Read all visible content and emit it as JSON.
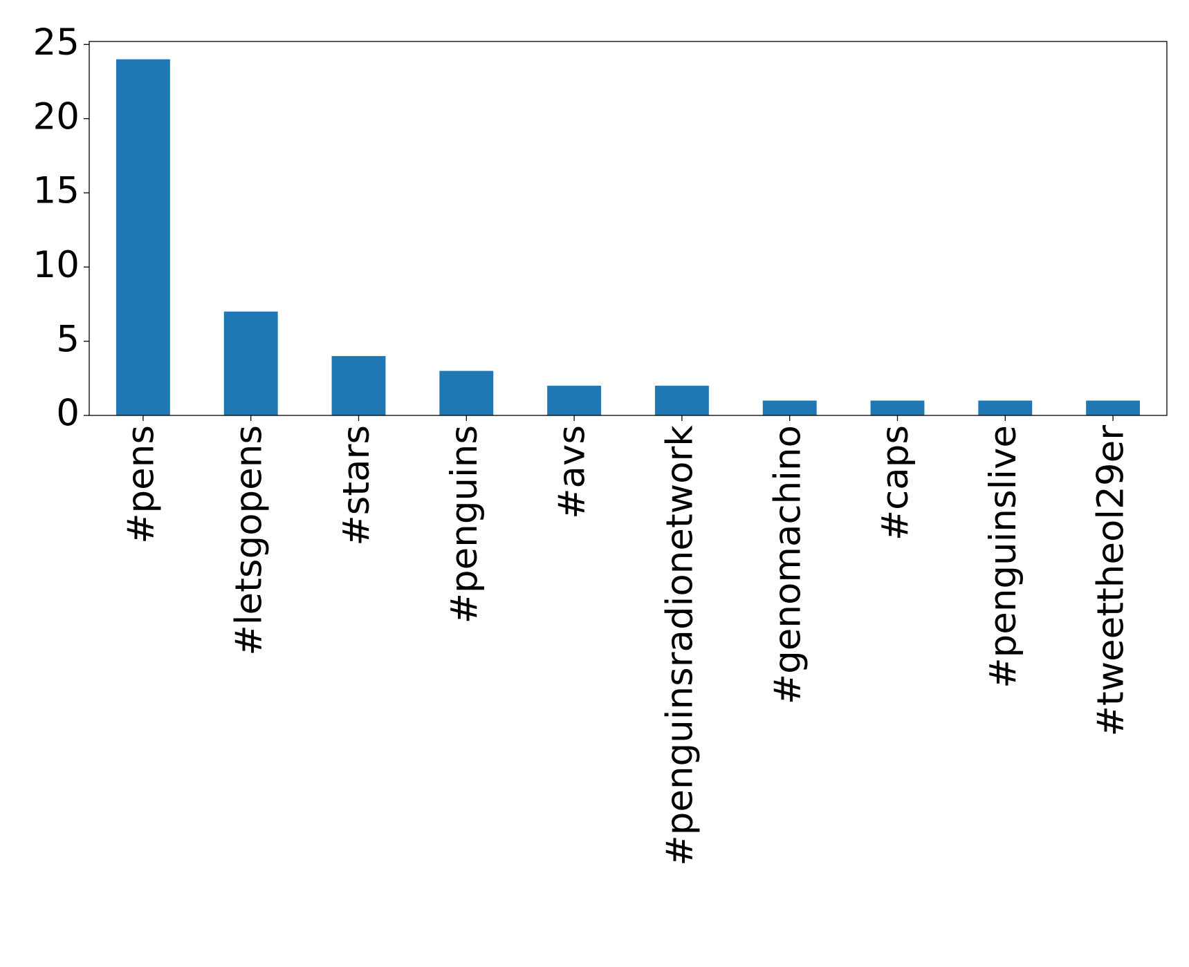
{
  "chart_data": {
    "type": "bar",
    "categories": [
      "#pens",
      "#letsgopens",
      "#stars",
      "#penguins",
      "#avs",
      "#penguinsradionetwork",
      "#genomachino",
      "#caps",
      "#penguinslive",
      "#tweettheol29er"
    ],
    "values": [
      24,
      7,
      4,
      3,
      2,
      2,
      1,
      1,
      1,
      1
    ],
    "color": "#1f77b4",
    "ylim": [
      0,
      25.2
    ],
    "yticks": [
      0,
      5,
      10,
      15,
      20,
      25
    ],
    "grid": false
  }
}
